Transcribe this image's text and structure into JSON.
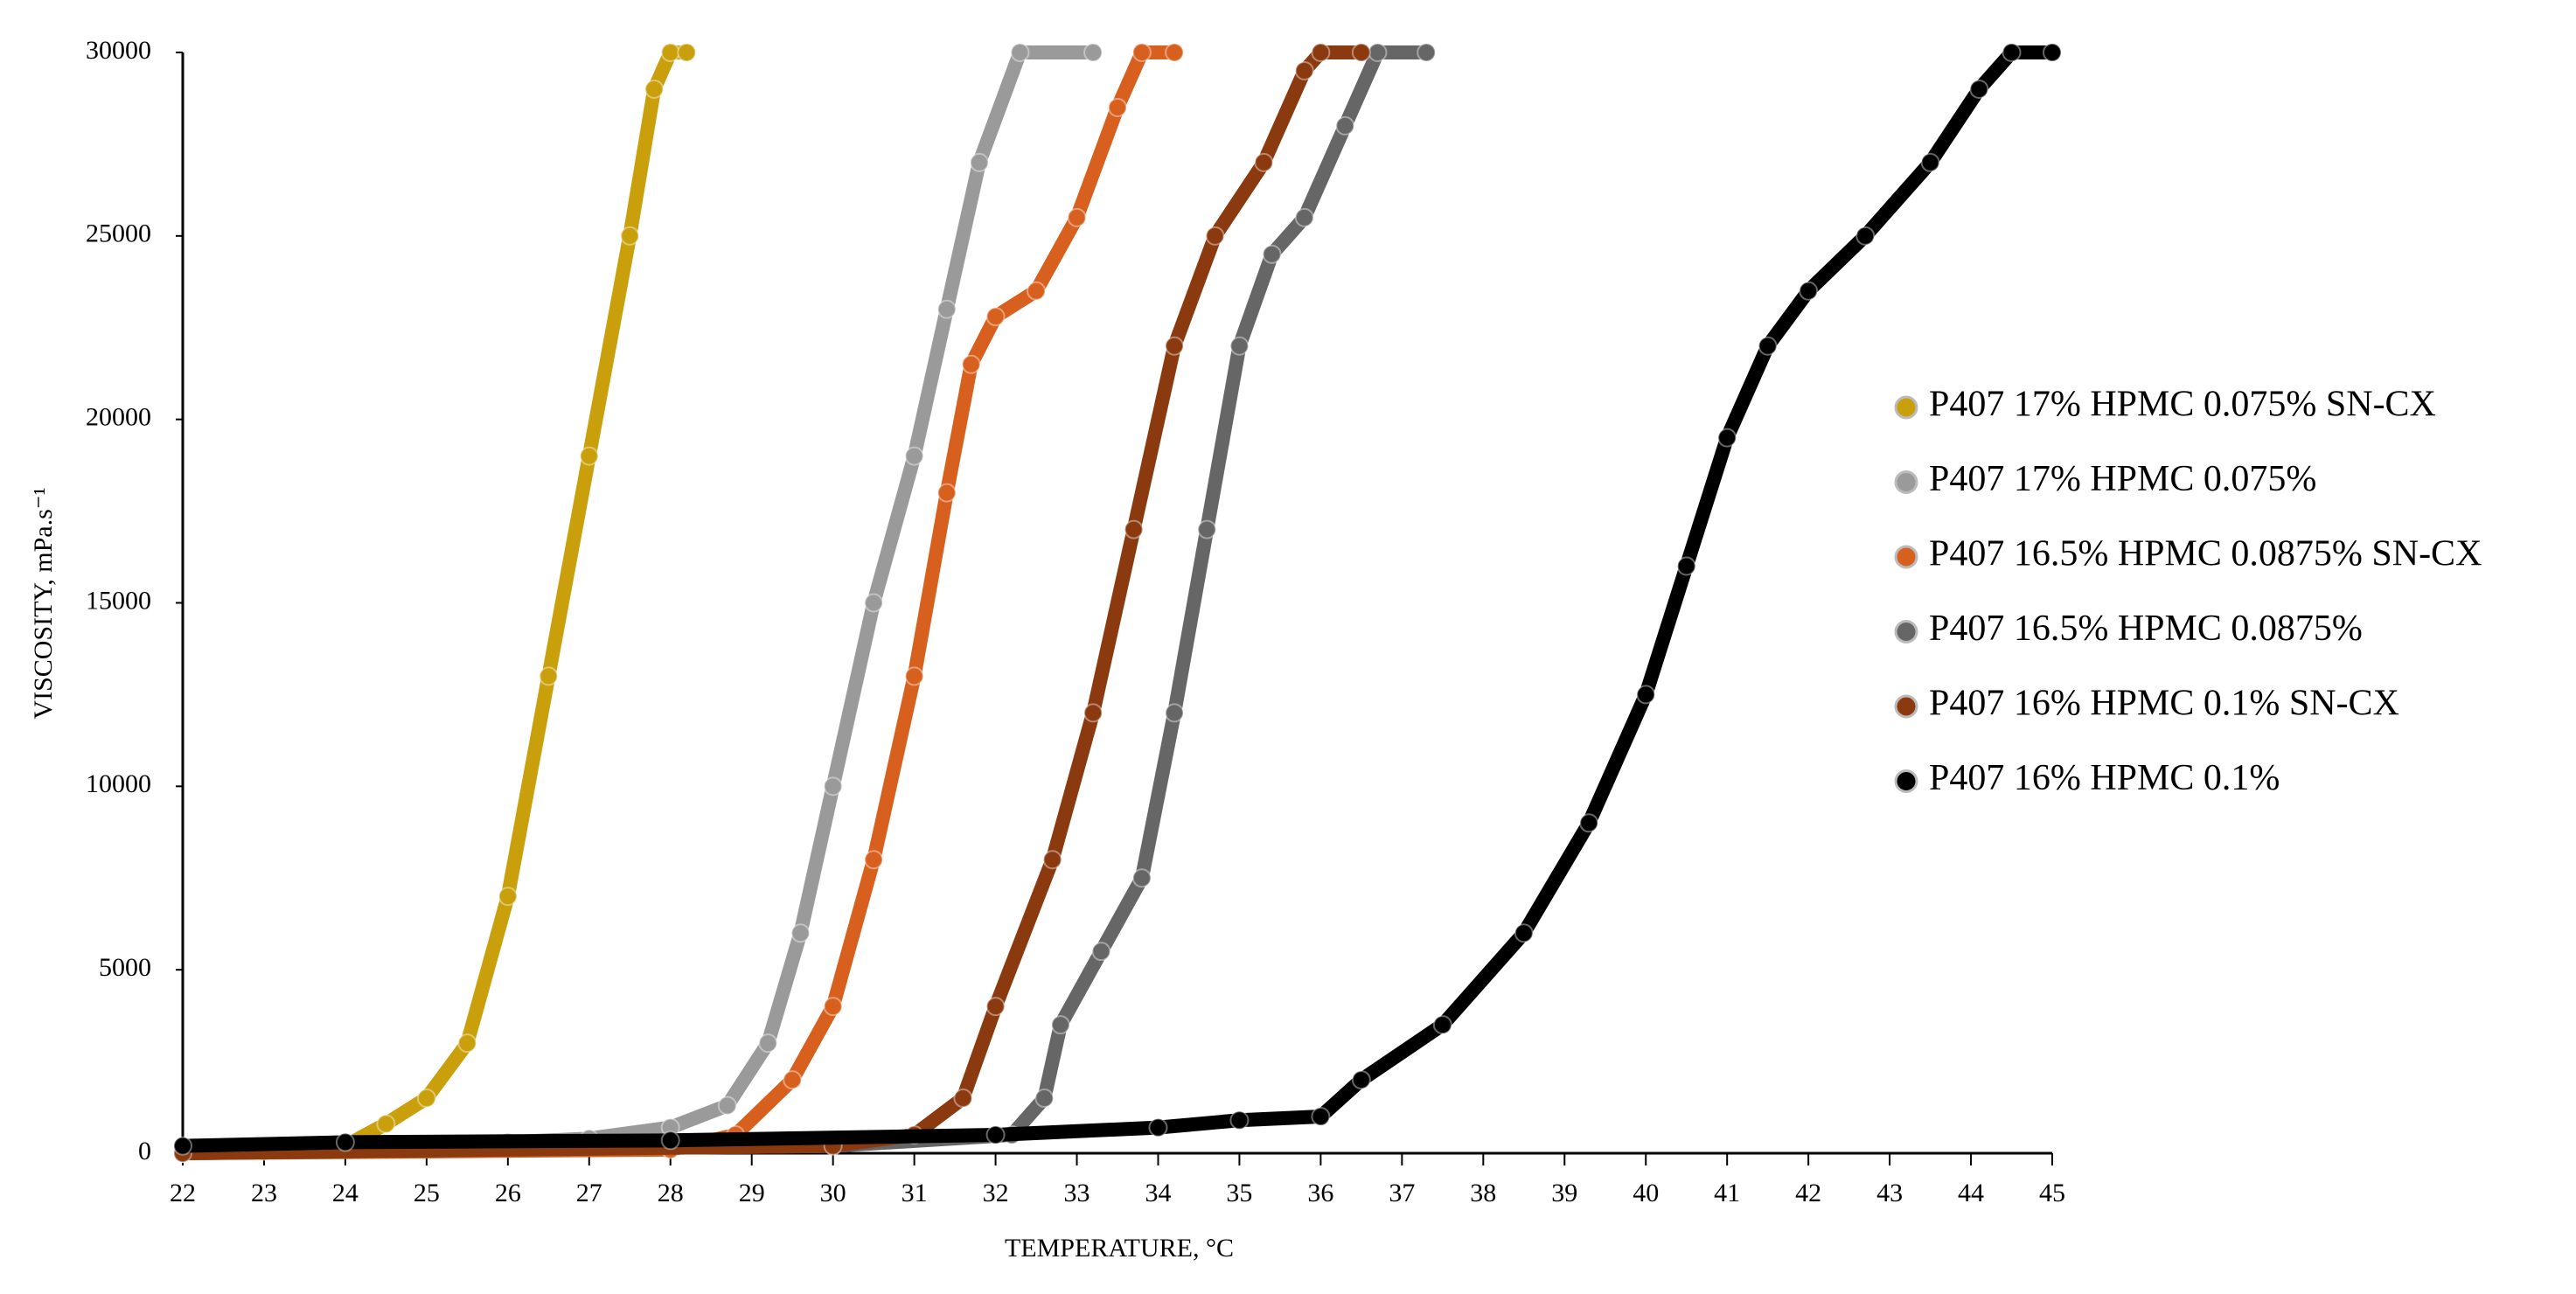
{
  "chart_data": {
    "type": "line",
    "x_label": "TEMPERATURE, °C",
    "y_label": "VISCOSITY, mPa.s⁻¹",
    "xlim": [
      22,
      45
    ],
    "xticks": [
      22,
      23,
      24,
      25,
      26,
      27,
      28,
      29,
      30,
      31,
      32,
      33,
      34,
      35,
      36,
      37,
      38,
      39,
      40,
      41,
      42,
      43,
      44,
      45
    ],
    "ylim": [
      0,
      30000
    ],
    "yticks": [
      0,
      5000,
      10000,
      15000,
      20000,
      25000,
      30000
    ],
    "grid": false,
    "legend": "right",
    "series": [
      {
        "name": "P407 17% HPMC 0.075% SN-CX",
        "color": "#c9a00c",
        "x": [
          22,
          23,
          24,
          24.5,
          25,
          25.5,
          26,
          26.5,
          27,
          27.5,
          27.8,
          28,
          28.2
        ],
        "values": [
          0,
          50,
          200,
          800,
          1500,
          3000,
          7000,
          13000,
          19000,
          25000,
          29000,
          30000,
          30000
        ]
      },
      {
        "name": "P407 17% HPMC 0.075%",
        "color": "#9a9a9a",
        "x": [
          22,
          24,
          26,
          27,
          28,
          28.7,
          29.2,
          29.6,
          30,
          30.5,
          31,
          31.4,
          31.8,
          32.3,
          33.2
        ],
        "values": [
          100,
          200,
          300,
          400,
          700,
          1300,
          3000,
          6000,
          10000,
          15000,
          19000,
          23000,
          27000,
          30000,
          30000
        ]
      },
      {
        "name": "P407 16.5% HPMC 0.0875% SN-CX",
        "color": "#d8601e",
        "x": [
          22,
          28,
          28.8,
          29.5,
          30,
          30.5,
          31,
          31.4,
          31.7,
          32,
          32.5,
          33,
          33.5,
          33.8,
          34.2
        ],
        "values": [
          0,
          100,
          500,
          2000,
          4000,
          8000,
          13000,
          18000,
          21500,
          22800,
          23500,
          25500,
          28500,
          30000,
          30000
        ]
      },
      {
        "name": "P407 16.5% HPMC 0.0875%",
        "color": "#666666",
        "x": [
          22,
          30,
          32.2,
          32.6,
          32.8,
          33.3,
          33.8,
          34.2,
          34.6,
          35,
          35.4,
          35.8,
          36.3,
          36.7,
          37.3
        ],
        "values": [
          0,
          200,
          500,
          1500,
          3500,
          5500,
          7500,
          12000,
          17000,
          22000,
          24500,
          25500,
          28000,
          30000,
          30000
        ]
      },
      {
        "name": "P407 16% HPMC 0.1% SN-CX",
        "color": "#8b3a10",
        "x": [
          22,
          30,
          31,
          31.6,
          32,
          32.7,
          33.2,
          33.7,
          34.2,
          34.7,
          35.3,
          35.8,
          36,
          36.5
        ],
        "values": [
          0,
          200,
          500,
          1500,
          4000,
          8000,
          12000,
          17000,
          22000,
          25000,
          27000,
          29500,
          30000,
          30000
        ]
      },
      {
        "name": "P407 16% HPMC 0.1%",
        "color": "#000000",
        "x": [
          22,
          24,
          28,
          32,
          34,
          35,
          36,
          36.5,
          37.5,
          38.5,
          39.3,
          40,
          40.5,
          41,
          41.5,
          42,
          42.7,
          43.5,
          44.1,
          44.5,
          45
        ],
        "values": [
          200,
          300,
          350,
          500,
          700,
          900,
          1000,
          2000,
          3500,
          6000,
          9000,
          12500,
          16000,
          19500,
          22000,
          23500,
          25000,
          27000,
          29000,
          30000,
          30000
        ]
      }
    ]
  }
}
